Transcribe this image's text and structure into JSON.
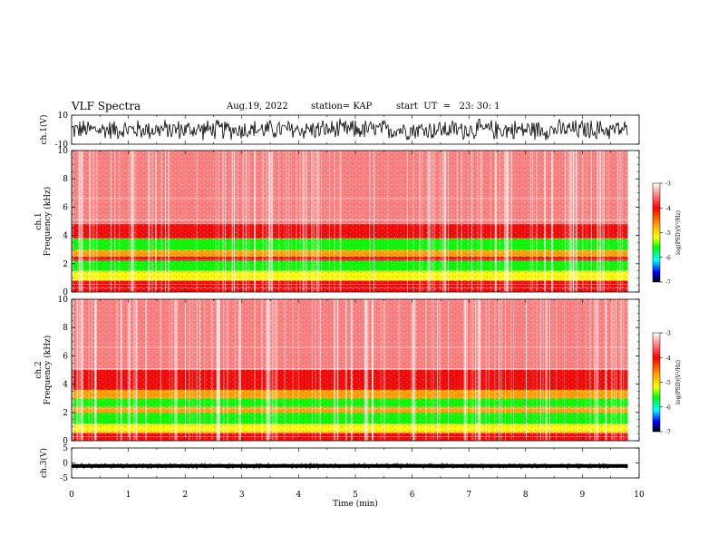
{
  "header": {
    "title": "VLF Spectra",
    "date": "Aug.19, 2022",
    "station": "station= KAP",
    "start_ut": "start  UT  =   23: 30: 1"
  },
  "colors": {
    "spectrogram_background": "#ff8080",
    "band_red": "#ff0000",
    "band_orange": "#ffa000",
    "band_yellow": "#ffff00",
    "band_green": "#00ff00",
    "waveform": "#000000"
  },
  "chart_data": [
    {
      "type": "line",
      "panel": "waveform-ch1",
      "ylabel": "ch.1(V)",
      "ylim": [
        -10,
        10
      ],
      "yticks": [
        "10",
        "-10"
      ],
      "xlim": [
        0,
        10
      ],
      "description_of_series": "dense noise waveform spanning roughly -8 to 8 V over 0–9.8 min"
    },
    {
      "type": "heatmap",
      "panel": "spectrogram-ch1",
      "ylabel": "ch.1\nFrequency  (kHz)",
      "ylim": [
        0,
        10
      ],
      "yticks": [
        "0",
        "2",
        "4",
        "6",
        "8",
        "10"
      ],
      "xlim": [
        0,
        10
      ],
      "data_end_min": 9.8,
      "bands_khz": [
        {
          "from": 0.0,
          "to": 0.8,
          "level": "red"
        },
        {
          "from": 0.8,
          "to": 1.5,
          "level": "yellow"
        },
        {
          "from": 1.5,
          "to": 2.2,
          "level": "green"
        },
        {
          "from": 2.2,
          "to": 2.5,
          "level": "red"
        },
        {
          "from": 2.5,
          "to": 3.0,
          "level": "orange"
        },
        {
          "from": 3.0,
          "to": 3.8,
          "level": "green"
        },
        {
          "from": 3.8,
          "to": 4.8,
          "level": "red"
        },
        {
          "from": 4.8,
          "to": 10.0,
          "level": "background"
        }
      ],
      "colorbar": {
        "label": "log(PSD)(V²/Hz)",
        "ticks": [
          "-3",
          "-4",
          "-5",
          "-6",
          "-7"
        ]
      }
    },
    {
      "type": "heatmap",
      "panel": "spectrogram-ch2",
      "ylabel": "ch.2\nFrequency  (kHz)",
      "ylim": [
        0,
        10
      ],
      "yticks": [
        "0",
        "2",
        "4",
        "6",
        "8",
        "10"
      ],
      "xlim": [
        0,
        10
      ],
      "data_end_min": 9.8,
      "bands_khz": [
        {
          "from": 0.0,
          "to": 0.6,
          "level": "red"
        },
        {
          "from": 0.6,
          "to": 1.2,
          "level": "yellow"
        },
        {
          "from": 1.2,
          "to": 2.0,
          "level": "green"
        },
        {
          "from": 2.0,
          "to": 2.4,
          "level": "orange"
        },
        {
          "from": 2.4,
          "to": 3.0,
          "level": "green"
        },
        {
          "from": 3.0,
          "to": 3.6,
          "level": "orange"
        },
        {
          "from": 3.6,
          "to": 5.0,
          "level": "red"
        },
        {
          "from": 5.0,
          "to": 10.0,
          "level": "background"
        }
      ],
      "colorbar": {
        "label": "log(PSD)(V²/Hz)",
        "ticks": [
          "-3",
          "-4",
          "-5",
          "-6",
          "-7"
        ]
      }
    },
    {
      "type": "line",
      "panel": "waveform-ch3",
      "ylabel": "ch.3(V)",
      "ylim": [
        -5,
        5
      ],
      "yticks": [
        "5",
        "0",
        "-5"
      ],
      "xlim": [
        0,
        10
      ],
      "description_of_series": "flat noisy band near -1 V over 0–9.8 min"
    }
  ],
  "xaxis": {
    "label": "Time  (min)",
    "ticks": [
      "0",
      "1",
      "2",
      "3",
      "4",
      "5",
      "6",
      "7",
      "8",
      "9",
      "10"
    ]
  }
}
